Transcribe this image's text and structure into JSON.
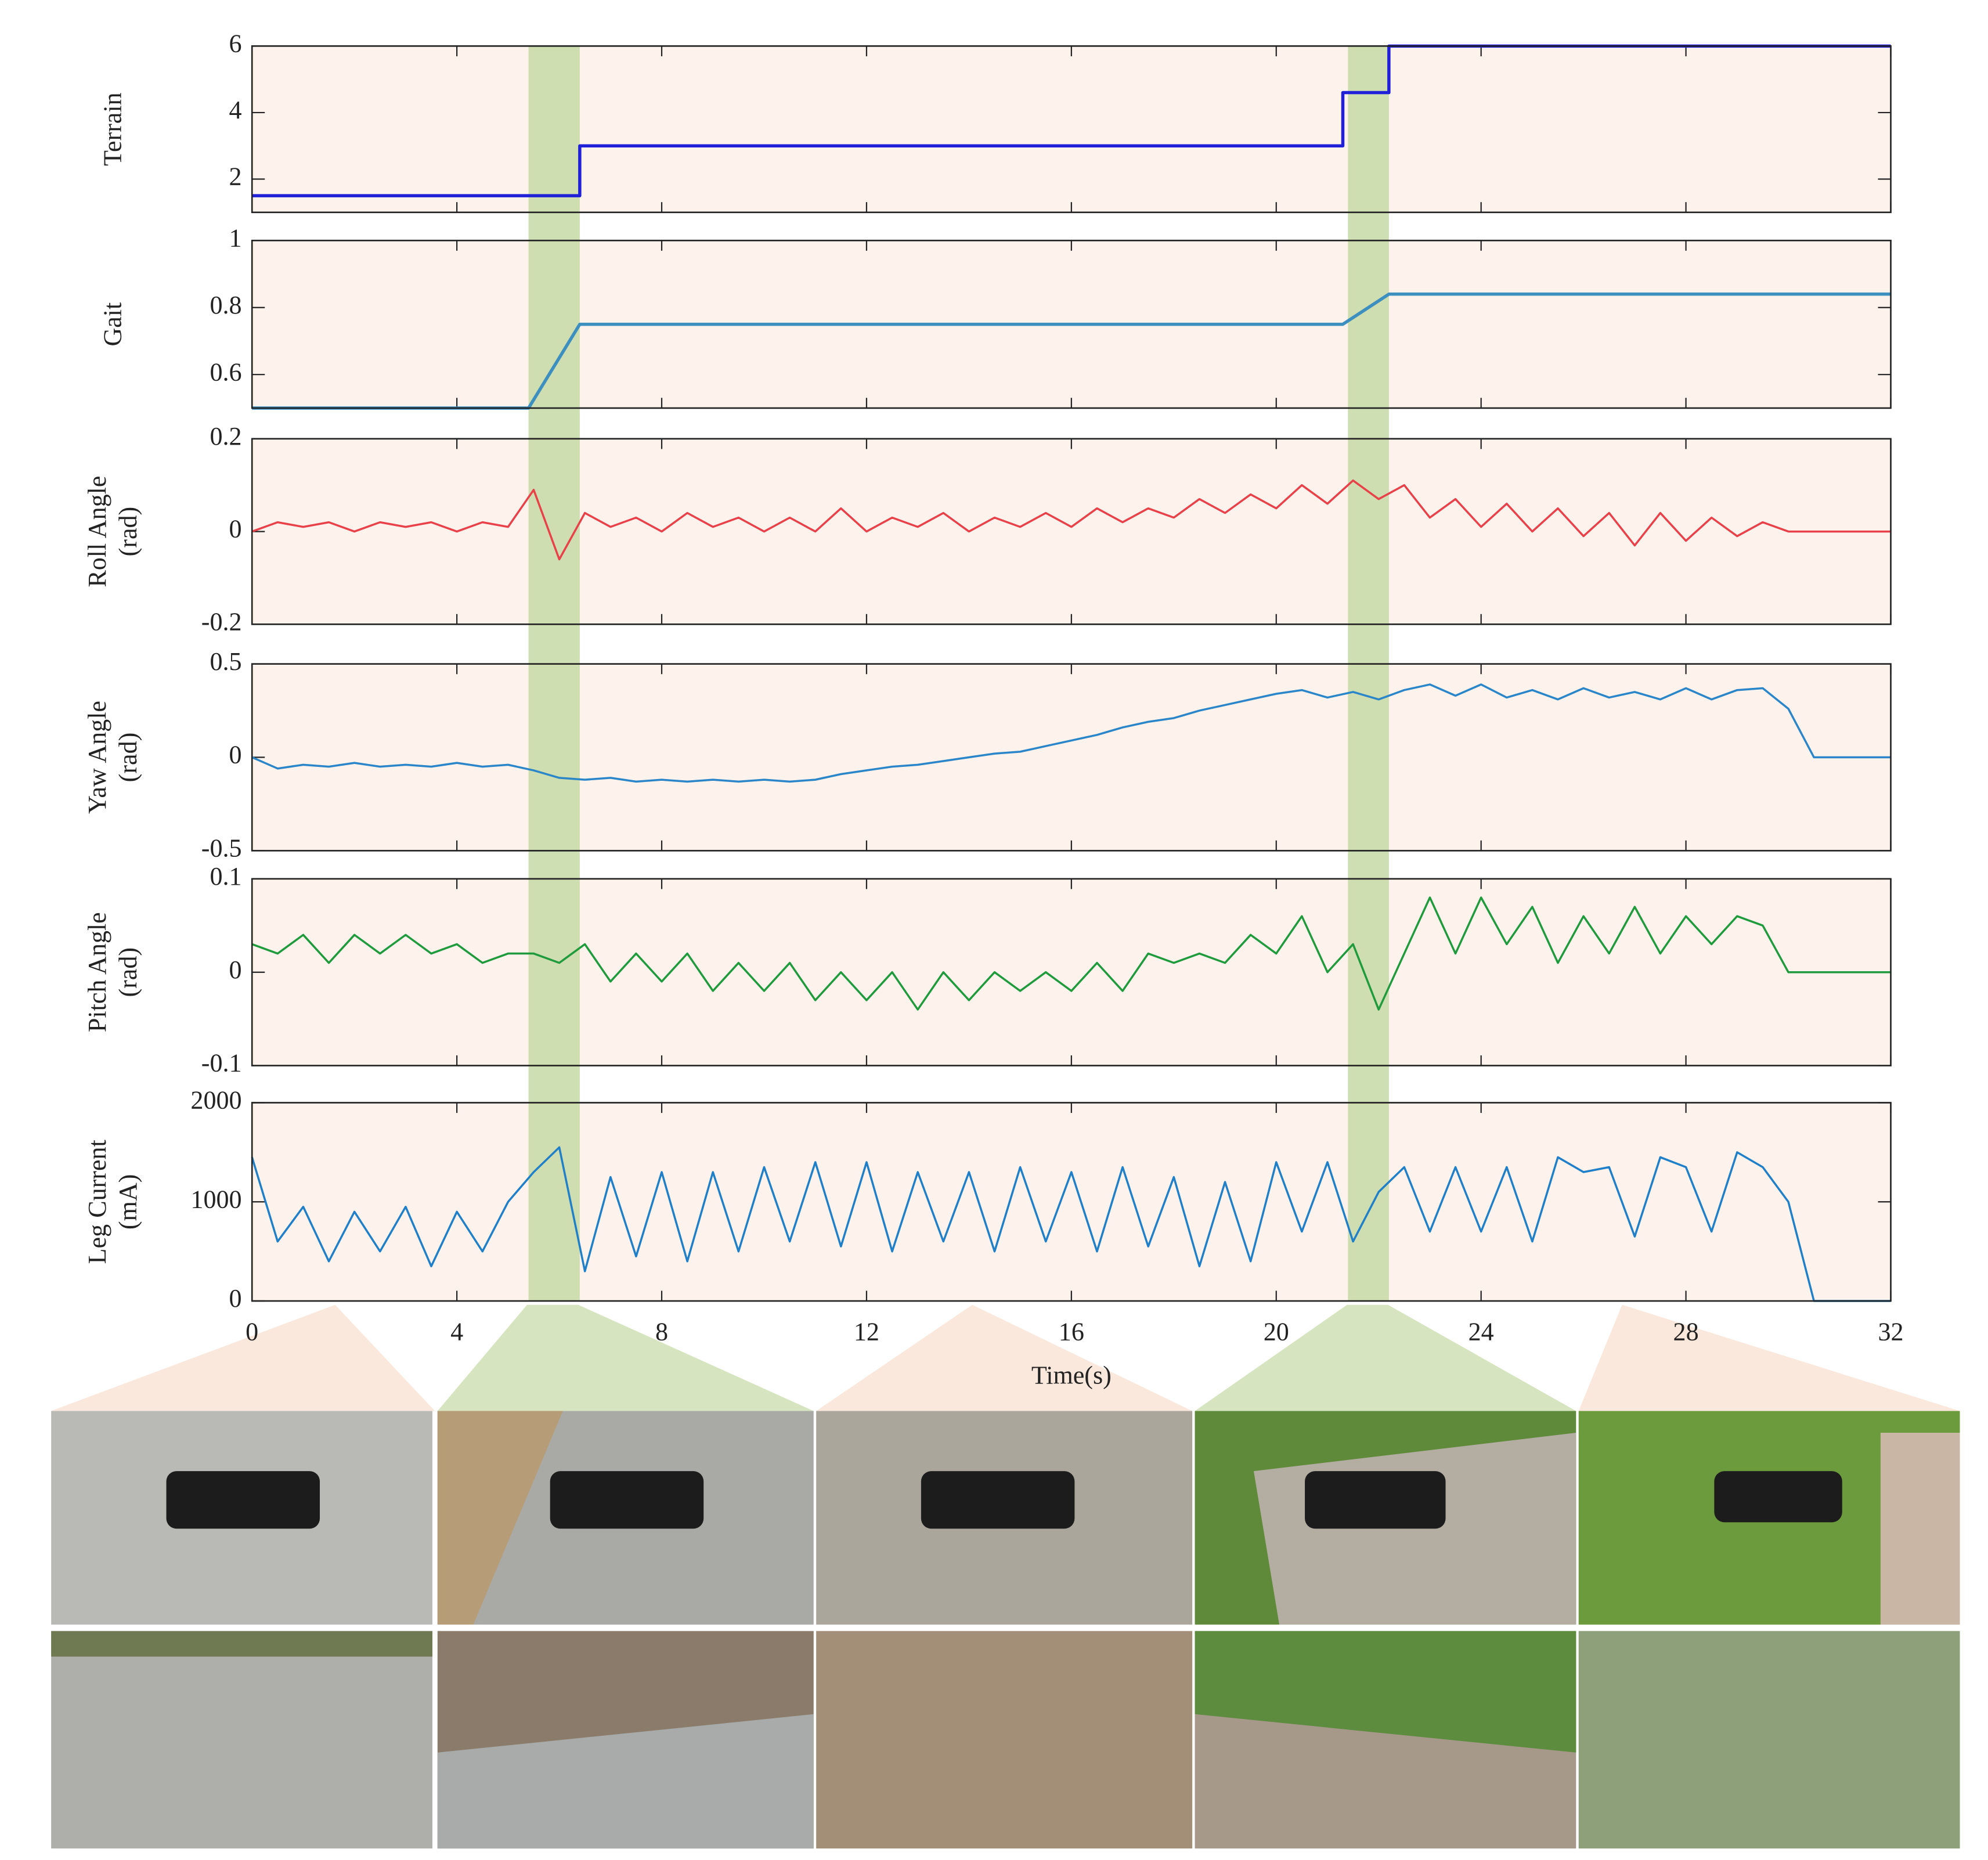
{
  "chart_data": [
    {
      "type": "line",
      "ylabel": [
        "Terrain"
      ],
      "color": "#2020d8",
      "background": "#fdf3ec",
      "x": [
        0,
        6.4,
        6.4,
        21.3,
        21.3,
        22.2,
        22.2,
        32
      ],
      "values": [
        1.5,
        1.5,
        3,
        3,
        4.6,
        4.6,
        6,
        6
      ],
      "xlim": [
        0,
        32
      ],
      "ylim": [
        1,
        6
      ],
      "yticks": [
        2,
        4,
        6
      ]
    },
    {
      "type": "line",
      "ylabel": [
        "Gait"
      ],
      "color": "#3d8fc0",
      "background": "#fdf3ec",
      "x": [
        0,
        5.4,
        6.4,
        21.3,
        22.2,
        32
      ],
      "values": [
        0.5,
        0.5,
        0.75,
        0.75,
        0.84,
        0.84
      ],
      "xlim": [
        0,
        32
      ],
      "ylim": [
        0.5,
        1
      ],
      "yticks": [
        0.6,
        0.8,
        1
      ]
    },
    {
      "type": "line",
      "ylabel": [
        "Roll Angle",
        "(rad)"
      ],
      "color": "#e8414a",
      "background": "#fdf3ec",
      "x": [
        0,
        0.5,
        1,
        1.5,
        2,
        2.5,
        3,
        3.5,
        4,
        4.5,
        5,
        5.5,
        6,
        6.5,
        7,
        7.5,
        8,
        8.5,
        9,
        9.5,
        10,
        10.5,
        11,
        11.5,
        12,
        12.5,
        13,
        13.5,
        14,
        14.5,
        15,
        15.5,
        16,
        16.5,
        17,
        17.5,
        18,
        18.5,
        19,
        19.5,
        20,
        20.5,
        21,
        21.5,
        22,
        22.5,
        23,
        23.5,
        24,
        24.5,
        25,
        25.5,
        26,
        26.5,
        27,
        27.5,
        28,
        28.5,
        29,
        29.5,
        30,
        30.5,
        31,
        31.5,
        32
      ],
      "values": [
        0,
        0.02,
        0.01,
        0.02,
        0,
        0.02,
        0.01,
        0.02,
        0,
        0.02,
        0.01,
        0.09,
        -0.06,
        0.04,
        0.01,
        0.03,
        0,
        0.04,
        0.01,
        0.03,
        0,
        0.03,
        0,
        0.05,
        0,
        0.03,
        0.01,
        0.04,
        0,
        0.03,
        0.01,
        0.04,
        0.01,
        0.05,
        0.02,
        0.05,
        0.03,
        0.07,
        0.04,
        0.08,
        0.05,
        0.1,
        0.06,
        0.11,
        0.07,
        0.1,
        0.03,
        0.07,
        0.01,
        0.06,
        0,
        0.05,
        -0.01,
        0.04,
        -0.03,
        0.04,
        -0.02,
        0.03,
        -0.01,
        0.02,
        0,
        0,
        0,
        0,
        0
      ],
      "xlim": [
        0,
        32
      ],
      "ylim": [
        -0.2,
        0.2
      ],
      "yticks": [
        -0.2,
        0,
        0.2
      ]
    },
    {
      "type": "line",
      "ylabel": [
        "Yaw Angle",
        "(rad)"
      ],
      "color": "#2a86c8",
      "background": "#fdf3ec",
      "x": [
        0,
        0.5,
        1,
        1.5,
        2,
        2.5,
        3,
        3.5,
        4,
        4.5,
        5,
        5.5,
        6,
        6.5,
        7,
        7.5,
        8,
        8.5,
        9,
        9.5,
        10,
        10.5,
        11,
        11.5,
        12,
        12.5,
        13,
        13.5,
        14,
        14.5,
        15,
        15.5,
        16,
        16.5,
        17,
        17.5,
        18,
        18.5,
        19,
        19.5,
        20,
        20.5,
        21,
        21.5,
        22,
        22.5,
        23,
        23.5,
        24,
        24.5,
        25,
        25.5,
        26,
        26.5,
        27,
        27.5,
        28,
        28.5,
        29,
        29.5,
        30,
        30.5,
        31,
        31.5,
        32
      ],
      "values": [
        0,
        -0.06,
        -0.04,
        -0.05,
        -0.03,
        -0.05,
        -0.04,
        -0.05,
        -0.03,
        -0.05,
        -0.04,
        -0.07,
        -0.11,
        -0.12,
        -0.11,
        -0.13,
        -0.12,
        -0.13,
        -0.12,
        -0.13,
        -0.12,
        -0.13,
        -0.12,
        -0.09,
        -0.07,
        -0.05,
        -0.04,
        -0.02,
        0,
        0.02,
        0.03,
        0.06,
        0.09,
        0.12,
        0.16,
        0.19,
        0.21,
        0.25,
        0.28,
        0.31,
        0.34,
        0.36,
        0.32,
        0.35,
        0.31,
        0.36,
        0.39,
        0.33,
        0.39,
        0.32,
        0.36,
        0.31,
        0.37,
        0.32,
        0.35,
        0.31,
        0.37,
        0.31,
        0.36,
        0.37,
        0.26,
        0,
        0,
        0,
        0
      ],
      "xlim": [
        0,
        32
      ],
      "ylim": [
        -0.5,
        0.5
      ],
      "yticks": [
        -0.5,
        0,
        0.5
      ]
    },
    {
      "type": "line",
      "ylabel": [
        "Pitch Angle",
        "(rad)"
      ],
      "color": "#1f9a3c",
      "background": "#fdf3ec",
      "x": [
        0,
        0.5,
        1,
        1.5,
        2,
        2.5,
        3,
        3.5,
        4,
        4.5,
        5,
        5.5,
        6,
        6.5,
        7,
        7.5,
        8,
        8.5,
        9,
        9.5,
        10,
        10.5,
        11,
        11.5,
        12,
        12.5,
        13,
        13.5,
        14,
        14.5,
        15,
        15.5,
        16,
        16.5,
        17,
        17.5,
        18,
        18.5,
        19,
        19.5,
        20,
        20.5,
        21,
        21.5,
        22,
        22.5,
        23,
        23.5,
        24,
        24.5,
        25,
        25.5,
        26,
        26.5,
        27,
        27.5,
        28,
        28.5,
        29,
        29.5,
        30,
        30.5,
        31,
        31.5,
        32
      ],
      "values": [
        0.03,
        0.02,
        0.04,
        0.01,
        0.04,
        0.02,
        0.04,
        0.02,
        0.03,
        0.01,
        0.02,
        0.02,
        0.01,
        0.03,
        -0.01,
        0.02,
        -0.01,
        0.02,
        -0.02,
        0.01,
        -0.02,
        0.01,
        -0.03,
        0,
        -0.03,
        0,
        -0.04,
        0,
        -0.03,
        0,
        -0.02,
        0,
        -0.02,
        0.01,
        -0.02,
        0.02,
        0.01,
        0.02,
        0.01,
        0.04,
        0.02,
        0.06,
        0,
        0.03,
        -0.04,
        0.02,
        0.08,
        0.02,
        0.08,
        0.03,
        0.07,
        0.01,
        0.06,
        0.02,
        0.07,
        0.02,
        0.06,
        0.03,
        0.06,
        0.05,
        0,
        0,
        0,
        0,
        0
      ],
      "xlim": [
        0,
        32
      ],
      "ylim": [
        -0.1,
        0.1
      ],
      "yticks": [
        -0.1,
        0,
        0.1
      ]
    },
    {
      "type": "line",
      "ylabel": [
        "Leg Current",
        "(mA)"
      ],
      "xlabel": "Time(s)",
      "color": "#1f7fc8",
      "background": "#fdf3ec",
      "x": [
        0,
        0.5,
        1,
        1.5,
        2,
        2.5,
        3,
        3.5,
        4,
        4.5,
        5,
        5.5,
        6,
        6.5,
        7,
        7.5,
        8,
        8.5,
        9,
        9.5,
        10,
        10.5,
        11,
        11.5,
        12,
        12.5,
        13,
        13.5,
        14,
        14.5,
        15,
        15.5,
        16,
        16.5,
        17,
        17.5,
        18,
        18.5,
        19,
        19.5,
        20,
        20.5,
        21,
        21.5,
        22,
        22.5,
        23,
        23.5,
        24,
        24.5,
        25,
        25.5,
        26,
        26.5,
        27,
        27.5,
        28,
        28.5,
        29,
        29.5,
        30,
        30.5,
        31,
        31.5,
        32
      ],
      "values": [
        1450,
        600,
        950,
        400,
        900,
        500,
        950,
        350,
        900,
        500,
        1000,
        1300,
        1550,
        300,
        1250,
        450,
        1300,
        400,
        1300,
        500,
        1350,
        600,
        1400,
        550,
        1400,
        500,
        1300,
        600,
        1300,
        500,
        1350,
        600,
        1300,
        500,
        1350,
        550,
        1250,
        350,
        1200,
        400,
        1400,
        700,
        1400,
        600,
        1100,
        1350,
        700,
        1350,
        700,
        1350,
        600,
        1450,
        1300,
        1350,
        650,
        1450,
        1350,
        700,
        1500,
        1350,
        1000,
        0,
        0,
        0,
        0
      ],
      "xlim": [
        0,
        32
      ],
      "ylim": [
        0,
        2000
      ],
      "yticks": [
        0,
        1000,
        2000
      ],
      "xticks": [
        0,
        4,
        8,
        12,
        16,
        20,
        24,
        28,
        32
      ],
      "highlight_spans": [
        [
          5.4,
          6.4
        ],
        [
          21.4,
          22.2
        ]
      ],
      "highlight_color": "#c6d9a6"
    }
  ]
}
